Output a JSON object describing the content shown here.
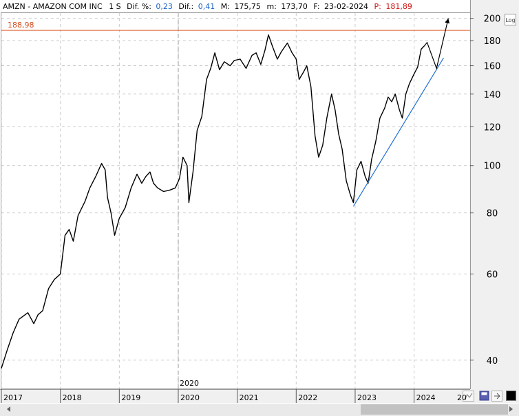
{
  "header": {
    "symbol": "AMZN - AMAZON COM INC",
    "interval": "1 S",
    "dif_pct_label": "Dif. %:",
    "dif_pct_value": "0,23",
    "dif_label": "Dif.:",
    "dif_value": "0,41",
    "max_label": "M:",
    "max_value": "175,75",
    "min_label": "m:",
    "min_value": "173,70",
    "date_label": "F:",
    "date_value": "23-02-2024",
    "price_label": "P:",
    "price_value": "181,89"
  },
  "log_button": "Log",
  "resistance_label": "188,98",
  "corner_year": "20",
  "colors": {
    "resistance": "#e05a2b",
    "trend": "#1f6fd6",
    "price": "#000000",
    "value_blue": "#1b64c8",
    "value_red": "#d21414",
    "grid": "#c9c9c9"
  },
  "icons": [
    "chart-type-icon",
    "save-icon",
    "pin-icon",
    "color-swatch-icon"
  ],
  "chart_data": {
    "type": "line",
    "scale": "log",
    "ylim": [
      35,
      205
    ],
    "yticks": [
      40,
      60,
      80,
      100,
      120,
      140,
      160,
      180,
      200
    ],
    "xticks": [
      "2017",
      "2018",
      "2019",
      "2020",
      "2021",
      "2022",
      "2023",
      "2024"
    ],
    "xlim": [
      2017.0,
      2024.95
    ],
    "resistance": 188.98,
    "current_price": 181.89,
    "annotation_year": "2020",
    "series": [
      {
        "points": [
          [
            2017.0,
            38.5
          ],
          [
            2017.1,
            42.0
          ],
          [
            2017.2,
            45.5
          ],
          [
            2017.3,
            48.5
          ],
          [
            2017.45,
            50.0
          ],
          [
            2017.55,
            47.5
          ],
          [
            2017.62,
            49.5
          ],
          [
            2017.7,
            50.5
          ],
          [
            2017.8,
            56.0
          ],
          [
            2017.9,
            58.5
          ],
          [
            2018.0,
            60.0
          ],
          [
            2018.08,
            72.0
          ],
          [
            2018.15,
            74.0
          ],
          [
            2018.22,
            70.0
          ],
          [
            2018.3,
            79.0
          ],
          [
            2018.42,
            84.5
          ],
          [
            2018.5,
            90.0
          ],
          [
            2018.6,
            95.0
          ],
          [
            2018.7,
            101.0
          ],
          [
            2018.76,
            98.0
          ],
          [
            2018.8,
            86.0
          ],
          [
            2018.86,
            80.0
          ],
          [
            2018.92,
            72.0
          ],
          [
            2019.0,
            78.0
          ],
          [
            2019.1,
            82.0
          ],
          [
            2019.2,
            90.0
          ],
          [
            2019.3,
            96.0
          ],
          [
            2019.38,
            92.0
          ],
          [
            2019.45,
            95.0
          ],
          [
            2019.52,
            97.0
          ],
          [
            2019.58,
            92.0
          ],
          [
            2019.65,
            90.0
          ],
          [
            2019.75,
            88.5
          ],
          [
            2019.85,
            89.0
          ],
          [
            2019.95,
            90.0
          ],
          [
            2020.02,
            94.0
          ],
          [
            2020.08,
            104.0
          ],
          [
            2020.15,
            100.0
          ],
          [
            2020.18,
            84.0
          ],
          [
            2020.25,
            97.0
          ],
          [
            2020.32,
            118.0
          ],
          [
            2020.4,
            126.0
          ],
          [
            2020.48,
            150.0
          ],
          [
            2020.55,
            158.0
          ],
          [
            2020.62,
            170.0
          ],
          [
            2020.7,
            157.0
          ],
          [
            2020.78,
            163.0
          ],
          [
            2020.88,
            160.0
          ],
          [
            2020.95,
            164.0
          ],
          [
            2021.05,
            165.0
          ],
          [
            2021.15,
            158.0
          ],
          [
            2021.25,
            168.0
          ],
          [
            2021.32,
            170.0
          ],
          [
            2021.4,
            161.0
          ],
          [
            2021.47,
            172.0
          ],
          [
            2021.53,
            185.0
          ],
          [
            2021.6,
            175.0
          ],
          [
            2021.68,
            165.0
          ],
          [
            2021.75,
            171.0
          ],
          [
            2021.85,
            178.0
          ],
          [
            2021.93,
            170.0
          ],
          [
            2022.0,
            165.0
          ],
          [
            2022.05,
            150.0
          ],
          [
            2022.12,
            155.0
          ],
          [
            2022.18,
            160.0
          ],
          [
            2022.25,
            145.0
          ],
          [
            2022.32,
            115.0
          ],
          [
            2022.38,
            104.0
          ],
          [
            2022.45,
            110.0
          ],
          [
            2022.52,
            125.0
          ],
          [
            2022.6,
            140.0
          ],
          [
            2022.66,
            130.0
          ],
          [
            2022.72,
            116.0
          ],
          [
            2022.78,
            108.0
          ],
          [
            2022.85,
            93.0
          ],
          [
            2022.92,
            87.0
          ],
          [
            2022.97,
            84.0
          ],
          [
            2023.03,
            98.0
          ],
          [
            2023.1,
            102.0
          ],
          [
            2023.17,
            95.0
          ],
          [
            2023.22,
            92.0
          ],
          [
            2023.28,
            103.0
          ],
          [
            2023.35,
            112.0
          ],
          [
            2023.42,
            125.0
          ],
          [
            2023.5,
            131.0
          ],
          [
            2023.56,
            138.0
          ],
          [
            2023.62,
            135.0
          ],
          [
            2023.68,
            140.0
          ],
          [
            2023.75,
            130.0
          ],
          [
            2023.8,
            125.0
          ],
          [
            2023.86,
            140.0
          ],
          [
            2023.92,
            147.0
          ],
          [
            2024.0,
            154.0
          ],
          [
            2024.06,
            159.0
          ],
          [
            2024.12,
            173.0
          ],
          [
            2024.18,
            176.0
          ]
        ]
      }
    ],
    "trendline": [
      [
        2022.97,
        82.5
      ],
      [
        2024.5,
        166.0
      ]
    ],
    "arrow_path": [
      [
        2024.18,
        176.0
      ],
      [
        2024.22,
        178.5
      ],
      [
        2024.38,
        158.0
      ],
      [
        2024.58,
        200.0
      ]
    ]
  }
}
